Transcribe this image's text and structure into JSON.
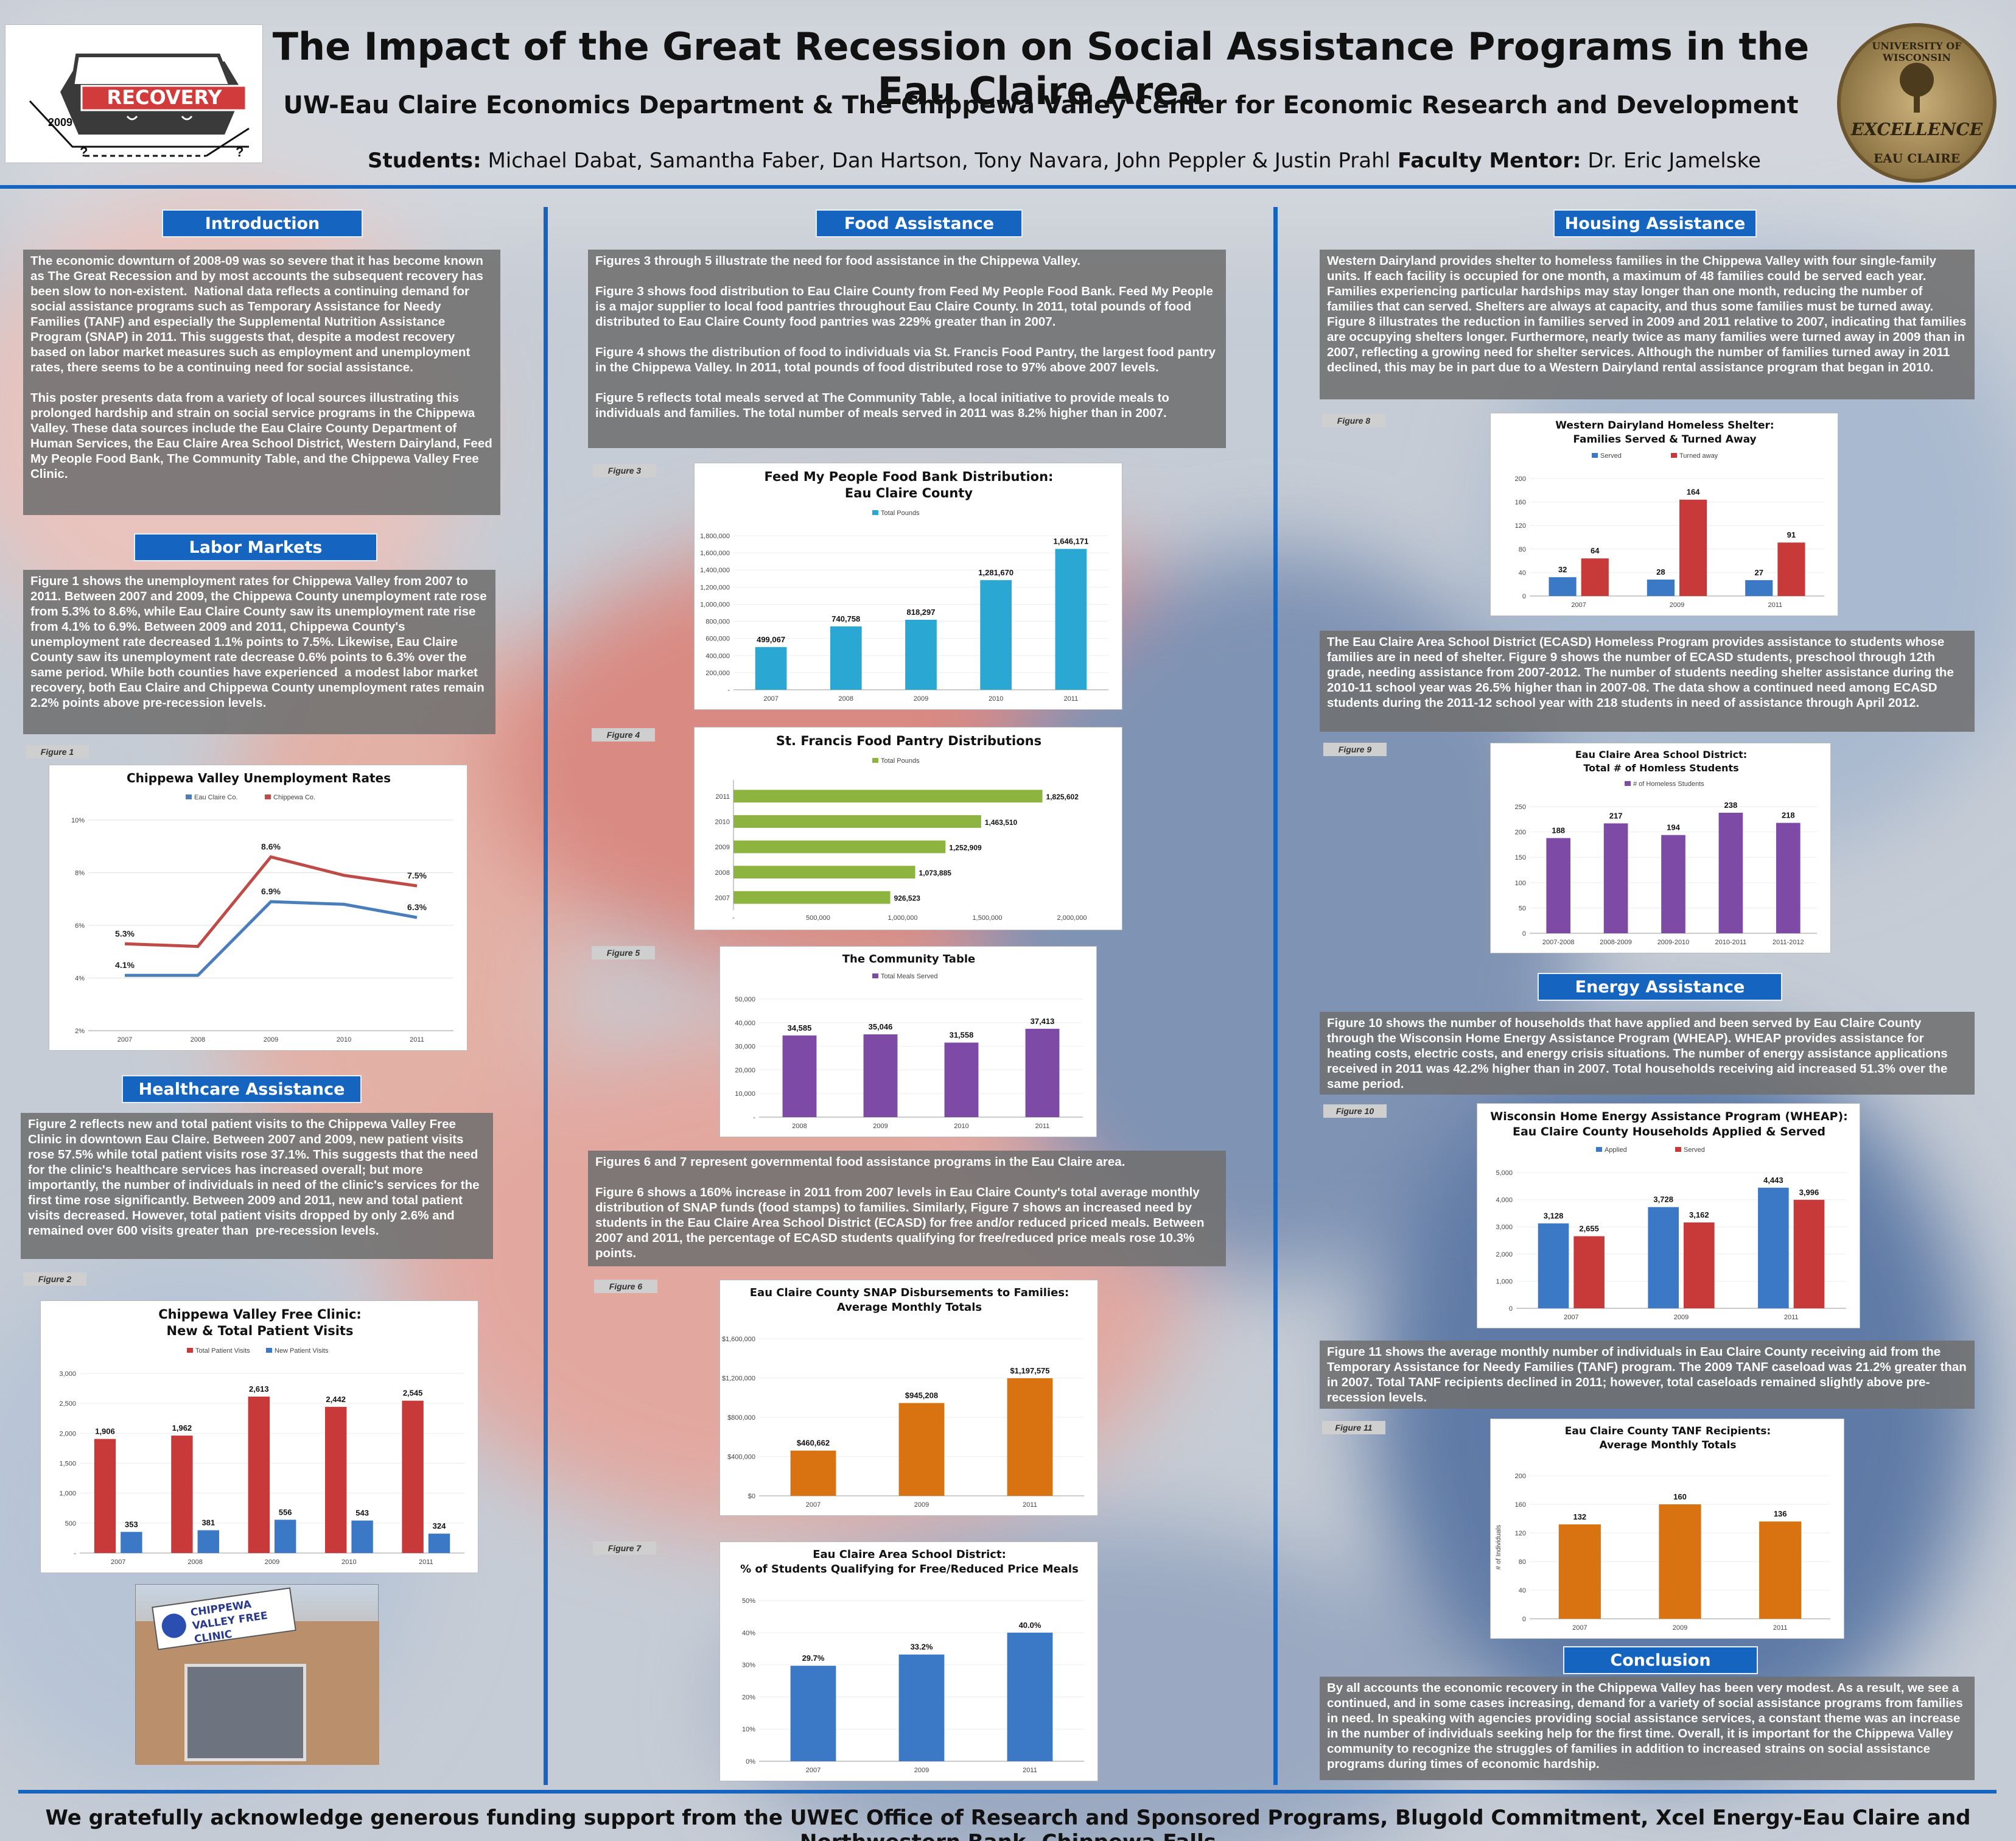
{
  "header": {
    "title": "The Impact of the Great Recession on Social Assistance Programs in the Eau Claire Area",
    "subtitle": "UW-Eau Claire Economics Department & The Chippewa Valley Center for Economic Research and Development",
    "students_label": "Students:",
    "students": "Michael Dabat, Samantha Faber, Dan Hartson, Tony Navara, John Peppler & Justin Prahl",
    "mentor_label": "Faculty Mentor:",
    "mentor": "Dr. Eric Jamelske",
    "logo": {
      "word": "RECOVERY",
      "year": "2009",
      "q1": "?",
      "q2": "?"
    },
    "seal": {
      "top": "UNIVERSITY OF WISCONSIN",
      "middle": "EXCELLENCE",
      "bottom": "EAU CLAIRE"
    }
  },
  "sections": {
    "intro": {
      "title": "Introduction",
      "text": "The economic downturn of 2008-09 was so severe that it has become known as The Great Recession and by most accounts the subsequent recovery has been slow to non-existent.  National data reflects a continuing demand for social assistance programs such as Temporary Assistance for Needy Families (TANF) and especially the Supplemental Nutrition Assistance Program (SNAP) in 2011. This suggests that, despite a modest recovery based on labor market measures such as employment and unemployment rates, there seems to be a continuing need for social assistance.\n\nThis poster presents data from a variety of local sources illustrating this prolonged hardship and strain on social service programs in the Chippewa Valley. These data sources include the Eau Claire County Department of Human Services, the Eau Claire Area School District, Western Dairyland, Feed My People Food Bank, The Community Table, and the Chippewa Valley Free Clinic."
    },
    "labor": {
      "title": "Labor Markets",
      "text": "Figure 1 shows the unemployment rates for Chippewa Valley from 2007 to 2011. Between 2007 and 2009, the Chippewa County unemployment rate rose from 5.3% to 8.6%, while Eau Claire County saw its unemployment rate rise from 4.1% to 6.9%. Between 2009 and 2011, Chippewa County's unemployment rate decreased 1.1% points to 7.5%. Likewise, Eau Claire County saw its unemployment rate decrease 0.6% points to 6.3% over the same period. While both counties have experienced  a modest labor market recovery, both Eau Claire and Chippewa County unemployment rates remain 2.2% points above pre-recession levels."
    },
    "health": {
      "title": "Healthcare Assistance",
      "text": "Figure 2 reflects new and total patient visits to the Chippewa Valley Free Clinic in downtown Eau Claire. Between 2007 and 2009, new patient visits rose 57.5% while total patient visits rose 37.1%. This suggests that the need for the clinic's healthcare services has increased overall; but more importantly, the number of individuals in need of the clinic's services for the first time rose significantly. Between 2009 and 2011, new and total patient visits decreased. However, total patient visits dropped by only 2.6% and remained over 600 visits greater than  pre-recession levels."
    },
    "food": {
      "title": "Food Assistance",
      "text1": "Figures 3 through 5 illustrate the need for food assistance in the Chippewa Valley.\n\nFigure 3 shows food distribution to Eau Claire County from Feed My People Food Bank. Feed My People is a major supplier to local food pantries throughout Eau Claire County. In 2011, total pounds of food distributed to Eau Claire County food pantries was 229% greater than in 2007.\n\nFigure 4 shows the distribution of food to individuals via St. Francis Food Pantry, the largest food pantry in the Chippewa Valley. In 2011, total pounds of food distributed rose to 97% above 2007 levels.\n\nFigure 5 reflects total meals served at The Community Table, a local initiative to provide meals to individuals and families. The total number of meals served in 2011 was 8.2% higher than in 2007.",
      "text2": "Figures 6 and 7 represent governmental food assistance programs in the Eau Claire area.\n\nFigure 6 shows a 160% increase in 2011 from 2007 levels in Eau Claire County's total average monthly distribution of SNAP funds (food stamps) to families. Similarly, Figure 7 shows an increased need by students in the Eau Claire Area School District (ECASD) for free and/or reduced priced meals. Between 2007 and 2011, the percentage of ECASD students qualifying for free/reduced price meals rose 10.3% points."
    },
    "housing": {
      "title": "Housing Assistance",
      "text1": "Western Dairyland provides shelter to homeless families in the Chippewa Valley with four single-family units. If each facility is occupied for one month, a maximum of 48 families could be served each year. Families experiencing particular hardships may stay longer than one month, reducing the number of families that can served. Shelters are always at capacity, and thus some families must be turned away. Figure 8 illustrates the reduction in families served in 2009 and 2011 relative to 2007, indicating that families are occupying shelters longer. Furthermore, nearly twice as many families were turned away in 2009 than in 2007, reflecting a growing need for shelter services. Although the number of families turned away in 2011 declined, this may be in part due to a Western Dairyland rental assistance program that began in 2010.",
      "text2": "The Eau Claire Area School District (ECASD) Homeless Program provides assistance to students whose families are in need of shelter. Figure 9 shows the number of ECASD students, preschool through 12th grade, needing assistance from 2007-2012. The number of students needing shelter assistance during the 2010-11 school year was 26.5% higher than in 2007-08. The data show a continued need among ECASD students during the 2011-12 school year with 218 students in need of assistance through April 2012."
    },
    "energy": {
      "title": "Energy Assistance",
      "text1": "Figure 10 shows the number of households that have applied and been served by Eau Claire County through the Wisconsin Home Energy Assistance Program (WHEAP). WHEAP provides assistance for heating costs, electric costs, and energy crisis situations. The number of energy assistance applications received in 2011 was 42.2% higher than in 2007. Total households receiving aid increased 51.3% over the same period.",
      "text2": "Figure 11 shows the average monthly number of individuals in Eau Claire County receiving aid from the Temporary Assistance for Needy Families (TANF) program. The 2009 TANF caseload was 21.2% greater than in 2007. Total TANF recipients declined in 2011; however, total caseloads remained slightly above pre-recession levels."
    },
    "conclusion": {
      "title": "Conclusion",
      "text": "By all accounts the economic recovery in the Chippewa Valley has been very modest. As a result, we see a continued, and in some cases increasing, demand for a variety of social assistance programs from families in need. In speaking with agencies providing social assistance services, a constant theme was an increase in the number of individuals seeking help for the first time. Overall, it is important for the Chippewa Valley community to recognize the struggles of families in addition to increased strains on social assistance programs during times of economic hardship."
    }
  },
  "figure_labels": {
    "f1": "Figure 1",
    "f2": "Figure 2",
    "f3": "Figure 3",
    "f4": "Figure 4",
    "f5": "Figure 5",
    "f6": "Figure 6",
    "f7": "Figure 7",
    "f8": "Figure 8",
    "f9": "Figure 9",
    "f10": "Figure 10",
    "f11": "Figure 11"
  },
  "clinic_photo": {
    "sign": "CHIPPEWA VALLEY FREE CLINIC"
  },
  "footer": "We gratefully acknowledge generous funding support from the UWEC Office of Research and Sponsored Programs, Blugold Commitment, Xcel Energy-Eau Claire and Northwestern Bank- Chippewa Falls",
  "colors": {
    "accent": "#1565c0",
    "text_box": "#707070",
    "red": "#c8393a",
    "blue": "#3b78c6",
    "teal": "#2aa7d2",
    "green": "#8db43e",
    "purple": "#7d4aa6",
    "orange": "#d97211"
  },
  "chart_data": [
    {
      "id": "f1",
      "type": "line",
      "title": "Chippewa Valley Unemployment Rates",
      "categories": [
        "2007",
        "2008",
        "2009",
        "2010",
        "2011"
      ],
      "series": [
        {
          "name": "Eau Claire Co.",
          "color": "#4a7ebb",
          "values": [
            4.1,
            4.1,
            6.9,
            6.8,
            6.3
          ],
          "labels": [
            "4.1%",
            "",
            "6.9%",
            "",
            "6.3%"
          ]
        },
        {
          "name": "Chippewa Co.",
          "color": "#be4b48",
          "values": [
            5.3,
            5.2,
            8.6,
            7.9,
            7.5
          ],
          "labels": [
            "5.3%",
            "",
            "8.6%",
            "",
            "7.5%"
          ]
        }
      ],
      "ylim": [
        2,
        10
      ],
      "yticks": [
        "2%",
        "4%",
        "6%",
        "8%",
        "10%"
      ]
    },
    {
      "id": "f2",
      "type": "bar",
      "title": "Chippewa Valley Free Clinic:\nNew & Total Patient Visits",
      "categories": [
        "2007",
        "2008",
        "2009",
        "2010",
        "2011"
      ],
      "series": [
        {
          "name": "Total Patient Visits",
          "color": "#c8393a",
          "values": [
            1906,
            1962,
            2613,
            2442,
            2545
          ],
          "labels": [
            "1,906",
            "1,962",
            "2,613",
            "2,442",
            "2,545"
          ]
        },
        {
          "name": "New Patient Visits",
          "color": "#3b78c6",
          "values": [
            353,
            381,
            556,
            543,
            324
          ],
          "labels": [
            "353",
            "381",
            "556",
            "543",
            "324"
          ]
        }
      ],
      "ylim": [
        0,
        3000
      ],
      "yticks": [
        "-",
        "500",
        "1,000",
        "1,500",
        "2,000",
        "2,500",
        "3,000"
      ]
    },
    {
      "id": "f3",
      "type": "bar",
      "title": "Feed My People Food Bank Distribution:\nEau Claire County",
      "categories": [
        "2007",
        "2008",
        "2009",
        "2010",
        "2011"
      ],
      "series": [
        {
          "name": "Total Pounds",
          "color": "#2aa7d2",
          "values": [
            499067,
            740758,
            818297,
            1281670,
            1646171
          ],
          "labels": [
            "499,067",
            "740,758",
            "818,297",
            "1,281,670",
            "1,646,171"
          ]
        }
      ],
      "ylim": [
        0,
        1800000
      ],
      "yticks": [
        "-",
        "200,000",
        "400,000",
        "600,000",
        "800,000",
        "1,000,000",
        "1,200,000",
        "1,400,000",
        "1,600,000",
        "1,800,000"
      ]
    },
    {
      "id": "f4",
      "type": "hbar",
      "title": "St. Francis Food Pantry Distributions",
      "categories": [
        "2007",
        "2008",
        "2009",
        "2010",
        "2011"
      ],
      "series": [
        {
          "name": "Total Pounds",
          "color": "#8db43e",
          "values": [
            926523,
            1073885,
            1252909,
            1463510,
            1825602
          ],
          "labels": [
            "926,523",
            "1,073,885",
            "1,252,909",
            "1,463,510",
            "1,825,602"
          ]
        }
      ],
      "xlim": [
        0,
        2000000
      ],
      "xticks": [
        "-",
        "500,000",
        "1,000,000",
        "1,500,000",
        "2,000,000"
      ]
    },
    {
      "id": "f5",
      "type": "bar",
      "title": "The Community Table",
      "categories": [
        "2008",
        "2009",
        "2010",
        "2011"
      ],
      "series": [
        {
          "name": "Total Meals Served",
          "color": "#7d4aa6",
          "values": [
            34585,
            35046,
            31558,
            37413
          ],
          "labels": [
            "34,585",
            "35,046",
            "31,558",
            "37,413"
          ]
        }
      ],
      "ylim": [
        0,
        50000
      ],
      "yticks": [
        "-",
        "10,000",
        "20,000",
        "30,000",
        "40,000",
        "50,000"
      ]
    },
    {
      "id": "f6",
      "type": "bar",
      "title": "Eau Claire County SNAP Disbursements to Families:\nAverage Monthly Totals",
      "categories": [
        "2007",
        "2009",
        "2011"
      ],
      "series": [
        {
          "name": "",
          "color": "#d97211",
          "values": [
            460662,
            945208,
            1197575
          ],
          "labels": [
            "$460,662",
            "$945,208",
            "$1,197,575"
          ]
        }
      ],
      "ylim": [
        0,
        1600000
      ],
      "yticks": [
        "$0",
        "$400,000",
        "$800,000",
        "$1,200,000",
        "$1,600,000"
      ]
    },
    {
      "id": "f7",
      "type": "bar",
      "title": "Eau Claire Area School District:\n% of Students Qualifying for Free/Reduced Price Meals",
      "categories": [
        "2007",
        "2009",
        "2011"
      ],
      "series": [
        {
          "name": "",
          "color": "#3b78c6",
          "values": [
            29.7,
            33.2,
            40.0
          ],
          "labels": [
            "29.7%",
            "33.2%",
            "40.0%"
          ]
        }
      ],
      "ylim": [
        0,
        50
      ],
      "yticks": [
        "0%",
        "10%",
        "20%",
        "30%",
        "40%",
        "50%"
      ]
    },
    {
      "id": "f8",
      "type": "bar",
      "title": "Western Dairyland Homeless Shelter:\nFamilies Served & Turned Away",
      "categories": [
        "2007",
        "2009",
        "2011"
      ],
      "series": [
        {
          "name": "Served",
          "color": "#3b78c6",
          "values": [
            32,
            28,
            27
          ],
          "labels": [
            "32",
            "28",
            "27"
          ]
        },
        {
          "name": "Turned away",
          "color": "#c8393a",
          "values": [
            64,
            164,
            91
          ],
          "labels": [
            "64",
            "164",
            "91"
          ]
        }
      ],
      "ylim": [
        0,
        200
      ],
      "yticks": [
        "0",
        "40",
        "80",
        "120",
        "160",
        "200"
      ]
    },
    {
      "id": "f9",
      "type": "bar",
      "title": "Eau Claire Area School District:\nTotal # of Homless Students",
      "categories": [
        "2007-2008",
        "2008-2009",
        "2009-2010",
        "2010-2011",
        "2011-2012"
      ],
      "series": [
        {
          "name": "# of Homeless Students",
          "color": "#7d4aa6",
          "values": [
            188,
            217,
            194,
            238,
            218
          ],
          "labels": [
            "188",
            "217",
            "194",
            "238",
            "218"
          ]
        }
      ],
      "ylim": [
        0,
        250
      ],
      "yticks": [
        "0",
        "50",
        "100",
        "150",
        "200",
        "250"
      ]
    },
    {
      "id": "f10",
      "type": "bar",
      "title": "Wisconsin Home Energy Assistance Program (WHEAP):\nEau Claire County Households Applied & Served",
      "categories": [
        "2007",
        "2009",
        "2011"
      ],
      "series": [
        {
          "name": "Applied",
          "color": "#3b78c6",
          "values": [
            3128,
            3728,
            4443
          ],
          "labels": [
            "3,128",
            "3,728",
            "4,443"
          ]
        },
        {
          "name": "Served",
          "color": "#c8393a",
          "values": [
            2655,
            3162,
            3996
          ],
          "labels": [
            "2,655",
            "3,162",
            "3,996"
          ]
        }
      ],
      "ylim": [
        0,
        5000
      ],
      "yticks": [
        "0",
        "1,000",
        "2,000",
        "3,000",
        "4,000",
        "5,000"
      ]
    },
    {
      "id": "f11",
      "type": "bar",
      "title": "Eau Claire County TANF Recipients:\nAverage Monthly Totals",
      "categories": [
        "2007",
        "2009",
        "2011"
      ],
      "series": [
        {
          "name": "",
          "color": "#d97211",
          "values": [
            132,
            160,
            136
          ],
          "labels": [
            "132",
            "160",
            "136"
          ]
        }
      ],
      "ylim": [
        0,
        200
      ],
      "yticks": [
        "0",
        "40",
        "80",
        "120",
        "160",
        "200"
      ],
      "ylabel": "# of Individuals"
    }
  ]
}
